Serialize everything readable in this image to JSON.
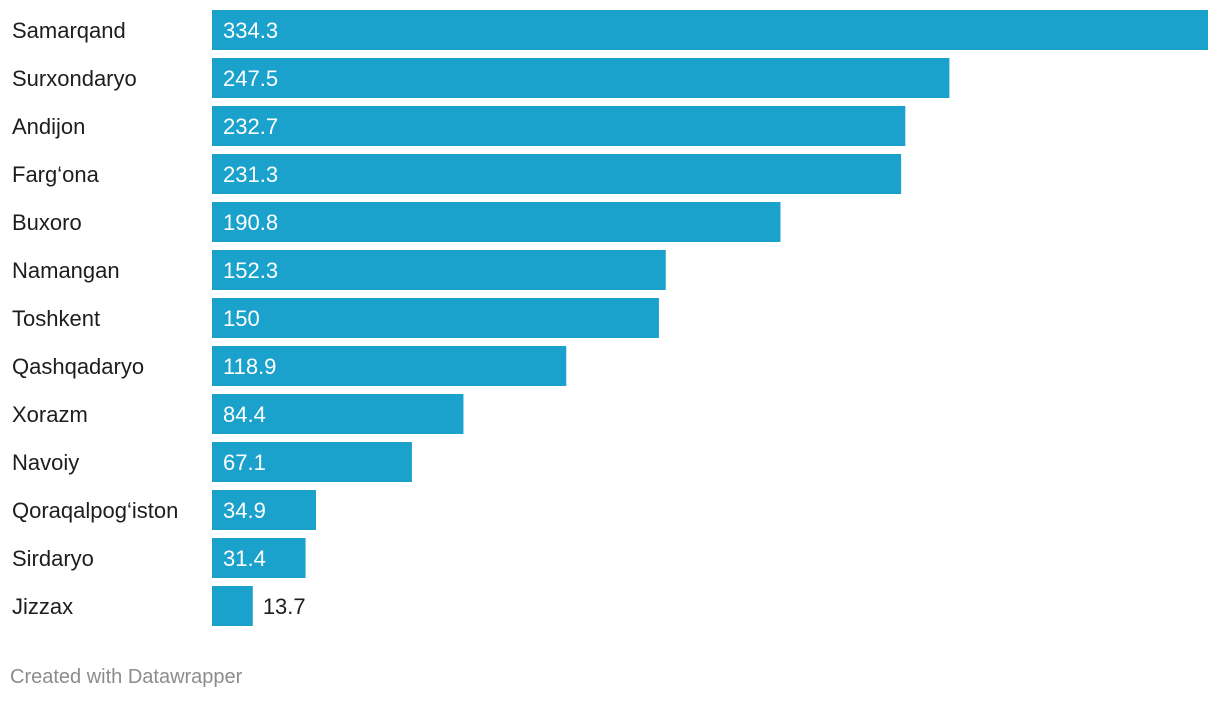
{
  "chart_data": {
    "type": "bar",
    "orientation": "horizontal",
    "categories": [
      "Samarqand",
      "Surxondaryo",
      "Andijon",
      "Farg‘ona",
      "Buxoro",
      "Namangan",
      "Toshkent",
      "Qashqadaryo",
      "Xorazm",
      "Navoiy",
      "Qoraqalpog‘iston",
      "Sirdaryo",
      "Jizzax"
    ],
    "values": [
      334.3,
      247.5,
      232.7,
      231.3,
      190.8,
      152.3,
      150,
      118.9,
      84.4,
      67.1,
      34.9,
      31.4,
      13.7
    ],
    "value_labels": [
      "334.3",
      "247.5",
      "232.7",
      "231.3",
      "190.8",
      "152.3",
      "150",
      "118.9",
      "84.4",
      "67.1",
      "34.9",
      "31.4",
      "13.7"
    ],
    "xlim": [
      0,
      334.3
    ],
    "grid": false,
    "legend": "none",
    "bar_color": "#1aa2cc",
    "label_color_inside": "#ffffff",
    "label_color_outside": "#1d1d1d",
    "category_color": "#1d1d1d"
  },
  "footer": {
    "credit": "Created with Datawrapper",
    "color": "#8c8c8c"
  }
}
